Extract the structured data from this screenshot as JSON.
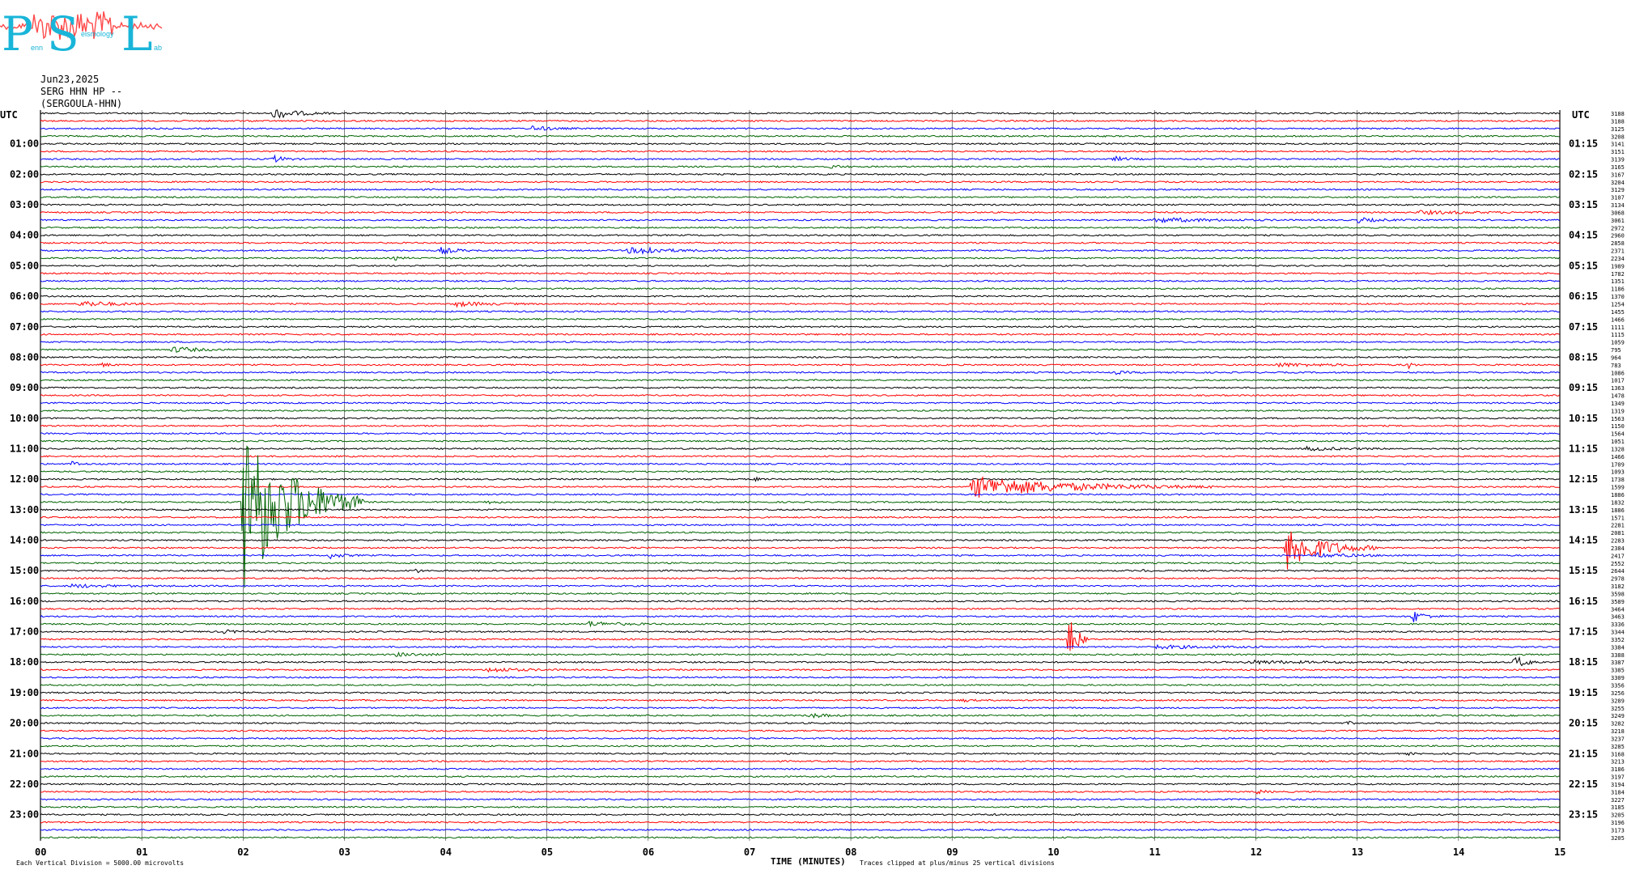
{
  "logo": {
    "letters": [
      "P",
      "S",
      "L"
    ],
    "small_text": [
      "enn",
      "eismology",
      "ab"
    ]
  },
  "header": {
    "date": "Jun23,2025",
    "station": "SERG HHN HP --",
    "site": "(SERGOULA-HHN)"
  },
  "footer": {
    "scale_note": "Each Vertical Division = 5000.00 microvolts",
    "xlabel": "TIME (MINUTES)",
    "clip_note": "Traces clipped at plus/minus 25 vertical divisions",
    "left_mark": "UTC",
    "right_mark": "UTC"
  },
  "chart_data": {
    "type": "line",
    "title": "",
    "xlabel": "TIME (MINUTES)",
    "xlim": [
      0,
      15
    ],
    "x_ticks": [
      "00",
      "01",
      "02",
      "03",
      "04",
      "05",
      "06",
      "07",
      "08",
      "09",
      "10",
      "11",
      "12",
      "13",
      "14",
      "15"
    ],
    "left_axis_title": "UTC",
    "right_axis_title": "UTC",
    "left_hour_labels": [
      "01:00",
      "02:00",
      "03:00",
      "04:00",
      "05:00",
      "06:00",
      "07:00",
      "08:00",
      "09:00",
      "10:00",
      "11:00",
      "12:00",
      "13:00",
      "14:00",
      "15:00",
      "16:00",
      "17:00",
      "18:00",
      "19:00",
      "20:00",
      "21:00",
      "22:00",
      "23:00"
    ],
    "right_hour_labels": [
      "01:15",
      "02:15",
      "03:15",
      "04:15",
      "05:15",
      "06:15",
      "07:15",
      "08:15",
      "09:15",
      "10:15",
      "11:15",
      "12:15",
      "13:15",
      "14:15",
      "15:15",
      "16:15",
      "17:15",
      "18:15",
      "19:15",
      "20:15",
      "21:15",
      "22:15",
      "23:15"
    ],
    "trace_colors": [
      "#000000",
      "#ff0000",
      "#0000ff",
      "#006400"
    ],
    "trace_count": 96,
    "rms_values": [
      3188,
      3188,
      3125,
      3208,
      3141,
      3151,
      3139,
      3165,
      3167,
      3204,
      3129,
      3107,
      3134,
      3068,
      3061,
      2972,
      2960,
      2858,
      2371,
      2234,
      1989,
      1782,
      1351,
      1186,
      1370,
      1254,
      1455,
      1466,
      1111,
      1115,
      1059,
      795,
      964,
      783,
      1086,
      1017,
      1363,
      1478,
      1349,
      1319,
      1563,
      1150,
      1564,
      1051,
      1328,
      1466,
      1709,
      1093,
      1738,
      1599,
      1886,
      1832,
      1886,
      1571,
      2281,
      2081,
      2283,
      2384,
      2417,
      2552,
      2644,
      2978,
      3182,
      3598,
      3589,
      3464,
      3463,
      3336,
      3344,
      3352,
      3384,
      3388,
      3387,
      3385,
      3309,
      3356,
      3256,
      3289,
      3255,
      3249,
      3282,
      3218,
      3237,
      3285,
      3168,
      3213,
      3186,
      3197,
      3194,
      3184,
      3227,
      3185,
      3205,
      3196,
      3173,
      3205
    ],
    "events": [
      {
        "trace": 0,
        "minute": 2.3,
        "amp": 7,
        "dur": 0.6,
        "note": "00:00"
      },
      {
        "trace": 2,
        "minute": 4.85,
        "amp": 3,
        "dur": 0.5
      },
      {
        "trace": 6,
        "minute": 2.3,
        "amp": 4,
        "dur": 0.3
      },
      {
        "trace": 6,
        "minute": 10.6,
        "amp": 3,
        "dur": 0.3
      },
      {
        "trace": 7,
        "minute": 7.8,
        "amp": 2,
        "dur": 0.3
      },
      {
        "trace": 13,
        "minute": 13.6,
        "amp": 2,
        "dur": 1.4
      },
      {
        "trace": 14,
        "minute": 11.0,
        "amp": 3,
        "dur": 1.3
      },
      {
        "trace": 14,
        "minute": 13.0,
        "amp": 3,
        "dur": 0.5
      },
      {
        "trace": 18,
        "minute": 3.95,
        "amp": 4,
        "dur": 0.4
      },
      {
        "trace": 18,
        "minute": 5.8,
        "amp": 3,
        "dur": 1.2
      },
      {
        "trace": 18,
        "minute": 5.95,
        "amp": 7,
        "dur": 0.2
      },
      {
        "trace": 19,
        "minute": 3.5,
        "amp": 2,
        "dur": 0.2
      },
      {
        "trace": 25,
        "minute": 0.4,
        "amp": 4,
        "dur": 0.8
      },
      {
        "trace": 25,
        "minute": 4.1,
        "amp": 3,
        "dur": 0.8
      },
      {
        "trace": 31,
        "minute": 1.3,
        "amp": 4,
        "dur": 0.6
      },
      {
        "trace": 33,
        "minute": 0.6,
        "amp": 3,
        "dur": 0.2
      },
      {
        "trace": 33,
        "minute": 12.2,
        "amp": 2,
        "dur": 1.4
      },
      {
        "trace": 33,
        "minute": 13.5,
        "amp": 6,
        "dur": 0.1
      },
      {
        "trace": 34,
        "minute": 10.6,
        "amp": 2,
        "dur": 0.3
      },
      {
        "trace": 44,
        "minute": 12.5,
        "amp": 2,
        "dur": 1.0
      },
      {
        "trace": 46,
        "minute": 0.3,
        "amp": 4,
        "dur": 0.2
      },
      {
        "trace": 48,
        "minute": 7.05,
        "amp": 3,
        "dur": 0.1
      },
      {
        "trace": 49,
        "minute": 9.2,
        "amp": 14,
        "dur": 2.4
      },
      {
        "trace": 51,
        "minute": 2.0,
        "amp": 120,
        "dur": 1.2,
        "note": "large quake"
      },
      {
        "trace": 51,
        "minute": 4.4,
        "amp": 2,
        "dur": 0.3
      },
      {
        "trace": 57,
        "minute": 12.3,
        "amp": 30,
        "dur": 0.9
      },
      {
        "trace": 58,
        "minute": 2.85,
        "amp": 4,
        "dur": 0.3
      },
      {
        "trace": 58,
        "minute": 12.6,
        "amp": 3,
        "dur": 0.9
      },
      {
        "trace": 60,
        "minute": 3.7,
        "amp": 4,
        "dur": 0.1
      },
      {
        "trace": 60,
        "minute": 10.9,
        "amp": 3,
        "dur": 0.1
      },
      {
        "trace": 62,
        "minute": 0.3,
        "amp": 2,
        "dur": 1.2
      },
      {
        "trace": 66,
        "minute": 13.55,
        "amp": 8,
        "dur": 0.3
      },
      {
        "trace": 67,
        "minute": 5.4,
        "amp": 3,
        "dur": 0.8
      },
      {
        "trace": 68,
        "minute": 1.8,
        "amp": 2,
        "dur": 0.4
      },
      {
        "trace": 69,
        "minute": 10.15,
        "amp": 40,
        "dur": 0.2
      },
      {
        "trace": 70,
        "minute": 11.0,
        "amp": 2,
        "dur": 1.6
      },
      {
        "trace": 71,
        "minute": 3.5,
        "amp": 2,
        "dur": 0.8
      },
      {
        "trace": 72,
        "minute": 11.9,
        "amp": 2,
        "dur": 1.8
      },
      {
        "trace": 72,
        "minute": 14.55,
        "amp": 9,
        "dur": 0.3
      },
      {
        "trace": 73,
        "minute": 4.4,
        "amp": 3,
        "dur": 0.8
      },
      {
        "trace": 77,
        "minute": 9.1,
        "amp": 2,
        "dur": 0.2
      },
      {
        "trace": 79,
        "minute": 7.6,
        "amp": 3,
        "dur": 0.4
      },
      {
        "trace": 80,
        "minute": 12.9,
        "amp": 3,
        "dur": 0.1
      },
      {
        "trace": 84,
        "minute": 13.5,
        "amp": 2,
        "dur": 0.1
      },
      {
        "trace": 89,
        "minute": 12.0,
        "amp": 3,
        "dur": 0.2
      },
      {
        "trace": 92,
        "minute": 9.4,
        "amp": 2,
        "dur": 0.1
      }
    ]
  }
}
